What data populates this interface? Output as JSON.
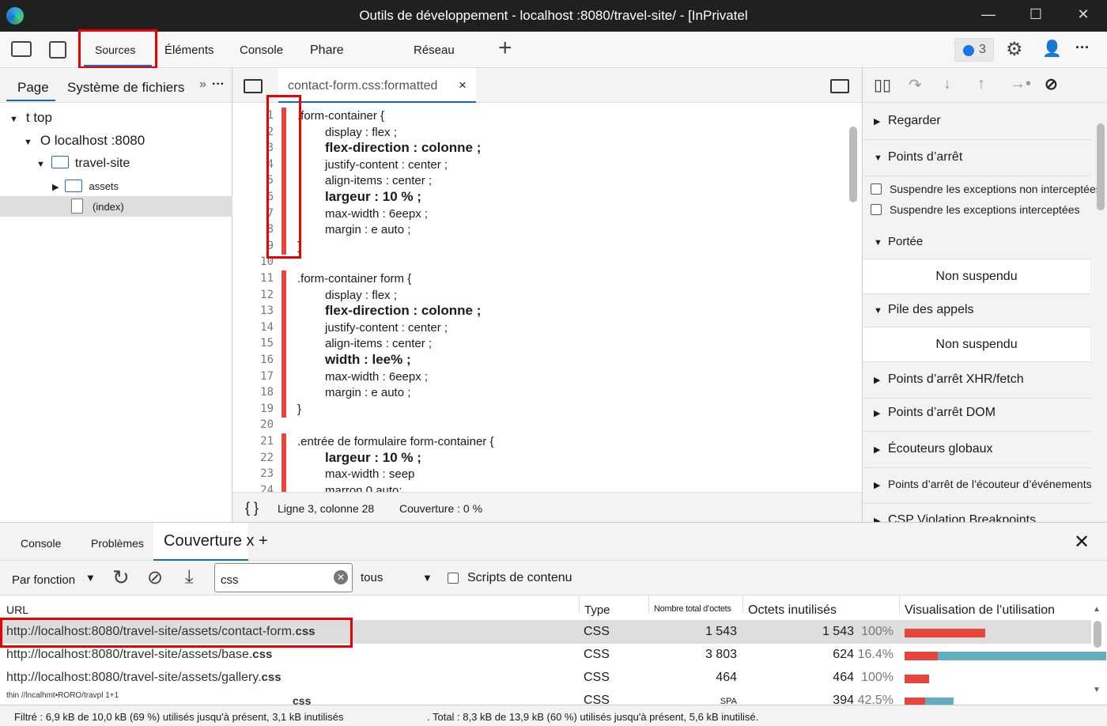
{
  "window": {
    "title": "Outils de développement - localhost :8080/travel-site/ - [InPrivatel",
    "min": "—",
    "max": "☐",
    "close": "✕"
  },
  "toolbar": {
    "tabs": [
      "Sources",
      "Éléments",
      "Console",
      "Phare",
      "Réseau"
    ],
    "add": "+",
    "issues_count": "3",
    "more": "···"
  },
  "left": {
    "tabs": [
      "Page",
      "Système de fichiers"
    ],
    "more_tabs": "»",
    "menu": "···",
    "tree": [
      {
        "label": "t top"
      },
      {
        "label": "O localhost :8080"
      },
      {
        "label": "travel-site"
      },
      {
        "label": "assets"
      },
      {
        "label": "(index)"
      }
    ]
  },
  "editor": {
    "file_tab": "contact-form.css:formatted",
    "close": "×",
    "lines": [
      {
        "n": "1",
        "text": ".form-container {",
        "ind": 0,
        "b": false,
        "cov": true
      },
      {
        "n": "2",
        "text": "display : flex ;",
        "ind": 1,
        "b": false,
        "cov": true
      },
      {
        "n": "3",
        "text": "flex-direction : colonne ;",
        "ind": 1,
        "b": true,
        "cov": true
      },
      {
        "n": "4",
        "text": "justify-content : center ;",
        "ind": 1,
        "b": false,
        "cov": true
      },
      {
        "n": "5",
        "text": "align-items : center ;",
        "ind": 1,
        "b": false,
        "cov": true
      },
      {
        "n": "6",
        "text": "largeur : 10 % ;",
        "ind": 1,
        "b": true,
        "cov": true
      },
      {
        "n": "7",
        "text": "max-width : 6eepx ;",
        "ind": 1,
        "b": false,
        "cov": true
      },
      {
        "n": "8",
        "text": "margin : e auto ;",
        "ind": 1,
        "b": false,
        "cov": true
      },
      {
        "n": "9",
        "text": "}",
        "ind": 0,
        "b": false,
        "cov": true
      },
      {
        "n": "10",
        "text": "",
        "ind": 0,
        "b": false,
        "cov": false
      },
      {
        "n": "11",
        "text": ".form-container form {",
        "ind": 0,
        "b": false,
        "cov": true
      },
      {
        "n": "12",
        "text": "display : flex ;",
        "ind": 1,
        "b": false,
        "cov": true
      },
      {
        "n": "13",
        "text": "flex-direction : colonne ;",
        "ind": 1,
        "b": true,
        "cov": true
      },
      {
        "n": "14",
        "text": "justify-content : center ;",
        "ind": 1,
        "b": false,
        "cov": true
      },
      {
        "n": "15",
        "text": "align-items : center ;",
        "ind": 1,
        "b": false,
        "cov": true
      },
      {
        "n": "16",
        "text": "width : lee% ;",
        "ind": 1,
        "b": true,
        "cov": true
      },
      {
        "n": "17",
        "text": "max-width : 6eepx ;",
        "ind": 1,
        "b": false,
        "cov": true
      },
      {
        "n": "18",
        "text": "margin : e auto ;",
        "ind": 1,
        "b": false,
        "cov": true
      },
      {
        "n": "19",
        "text": "}",
        "ind": 0,
        "b": false,
        "cov": true
      },
      {
        "n": "20",
        "text": "",
        "ind": 0,
        "b": false,
        "cov": false
      },
      {
        "n": "21",
        "text": ".entrée de formulaire form-container   {",
        "ind": 0,
        "b": false,
        "cov": true
      },
      {
        "n": "22",
        "text": "largeur : 10 % ;",
        "ind": 1,
        "b": true,
        "cov": true
      },
      {
        "n": "23",
        "text": "max-width : seep",
        "ind": 1,
        "b": false,
        "cov": true
      },
      {
        "n": "24",
        "text": "marron      0 auto;",
        "ind": 1,
        "b": false,
        "cov": true
      }
    ],
    "status": {
      "braces": "{ }",
      "position": "Ligne 3, colonne 28",
      "coverage": "Couverture : 0 %"
    }
  },
  "debugger": {
    "sections": [
      {
        "label": "Regarder",
        "open": false
      },
      {
        "label": "Points d’arrêt",
        "open": true
      },
      {
        "label": "Portée",
        "open": true
      },
      {
        "label": "Pile des appels",
        "open": true
      },
      {
        "label": "Points d’arrêt XHR/fetch",
        "open": false
      },
      {
        "label": "Points d’arrêt DOM",
        "open": false
      },
      {
        "label": "Écouteurs globaux",
        "open": false
      },
      {
        "label": "Points d’arrêt de l’écouteur d’événements",
        "open": false
      },
      {
        "label": "CSP Violation Breakpoints",
        "open": false
      }
    ],
    "checkboxes": [
      "Suspendre les exceptions non interceptées",
      "Suspendre les exceptions interceptées"
    ],
    "scope_text": "Non suspendu",
    "callstack_text": "Non suspendu"
  },
  "drawer": {
    "tabs": [
      "Console",
      "Problèmes",
      "Couverture x +"
    ],
    "close": "✕",
    "toolbar": {
      "mode": "Par fonction",
      "filter_value": "css",
      "type_select": "tous",
      "content_scripts": "Scripts de contenu"
    },
    "columns": [
      "URL",
      "Type",
      "Nombre total d’octets",
      "Octets inutilisés",
      "Visualisation de l’utilisation"
    ],
    "rows": [
      {
        "url": "http://localhost:8080/travel-site/assets/contact-form.",
        "ext": "css",
        "type": "CSS",
        "total": "1 543",
        "unused": "1 543",
        "pct": "100%",
        "used_frac": 0,
        "size_frac": 0.36,
        "selected": true
      },
      {
        "url": "http://localhost:8080/travel-site/assets/base.",
        "ext": "css",
        "type": "CSS",
        "total": "3 803",
        "unused": "624",
        "pct": "16.4%",
        "used_frac": 0.836,
        "size_frac": 0.9,
        "selected": false
      },
      {
        "url": "http://localhost:8080/travel-site/assets/gallery.",
        "ext": "css",
        "type": "CSS",
        "total": "464",
        "unused": "464",
        "pct": "100%",
        "used_frac": 0,
        "size_frac": 0.11,
        "selected": false
      },
      {
        "url": "thin //lncalhmt•RORO/travpl 1+1",
        "ext": "css",
        "type": "CSS",
        "total": "SPA",
        "unused": "394",
        "pct": "42.5%",
        "used_frac": 0.575,
        "size_frac": 0.22,
        "selected": false
      }
    ],
    "footer": {
      "filtered": "Filtré : 6,9 kB de 10,0 kB (69 %) utilisés jusqu'à présent, 3,1 kB inutilisés",
      "total": ". Total : 8,3 kB de 13,9 kB (60 %) utilisés jusqu'à présent, 5,6 kB inutilisé."
    }
  },
  "colors": {
    "unused": "#e8453c",
    "used": "#62adbf",
    "accent": "#0f6cbd",
    "highlight": "#e00000"
  }
}
